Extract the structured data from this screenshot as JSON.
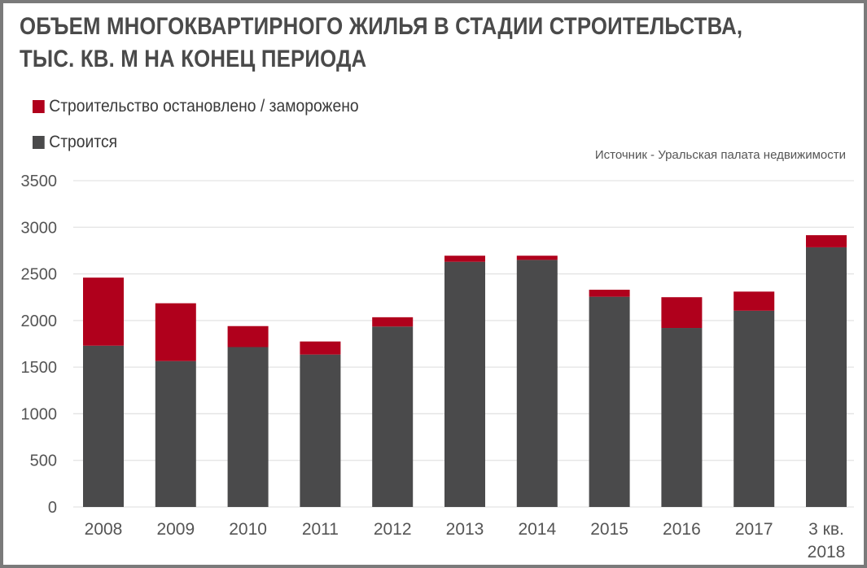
{
  "chart_data": {
    "type": "bar",
    "stacked": true,
    "title_lines": [
      "ОБЪЕМ МНОГОКВАРТИРНОГО ЖИЛЬЯ В СТАДИИ СТРОИТЕЛЬСТВА,",
      "ТЫС. КВ. М НА КОНЕЦ ПЕРИОДА"
    ],
    "source": "Источник - Уральская палата недвижимости",
    "categories": [
      [
        "2008"
      ],
      [
        "2009"
      ],
      [
        "2010"
      ],
      [
        "2011"
      ],
      [
        "2012"
      ],
      [
        "2013"
      ],
      [
        "2014"
      ],
      [
        "2015"
      ],
      [
        "2016"
      ],
      [
        "2017"
      ],
      [
        "3 кв.",
        "2018"
      ]
    ],
    "series": [
      {
        "name": "Строится",
        "color": "#4a4a4b",
        "values": [
          1730,
          1565,
          1715,
          1635,
          1935,
          2630,
          2650,
          2255,
          1920,
          2105,
          2785
        ]
      },
      {
        "name": "Строительство остановлено / заморожено",
        "color": "#b0001c",
        "values": [
          730,
          620,
          225,
          140,
          100,
          65,
          45,
          75,
          330,
          205,
          130
        ]
      }
    ],
    "legend_order": [
      1,
      0
    ],
    "yticks": [
      "0",
      "500",
      "1000",
      "1500",
      "2000",
      "2500",
      "3000",
      "3500"
    ],
    "ylim": [
      0,
      3500
    ],
    "grid": true,
    "legend_position": "top-left",
    "xlabel": "",
    "ylabel": ""
  }
}
